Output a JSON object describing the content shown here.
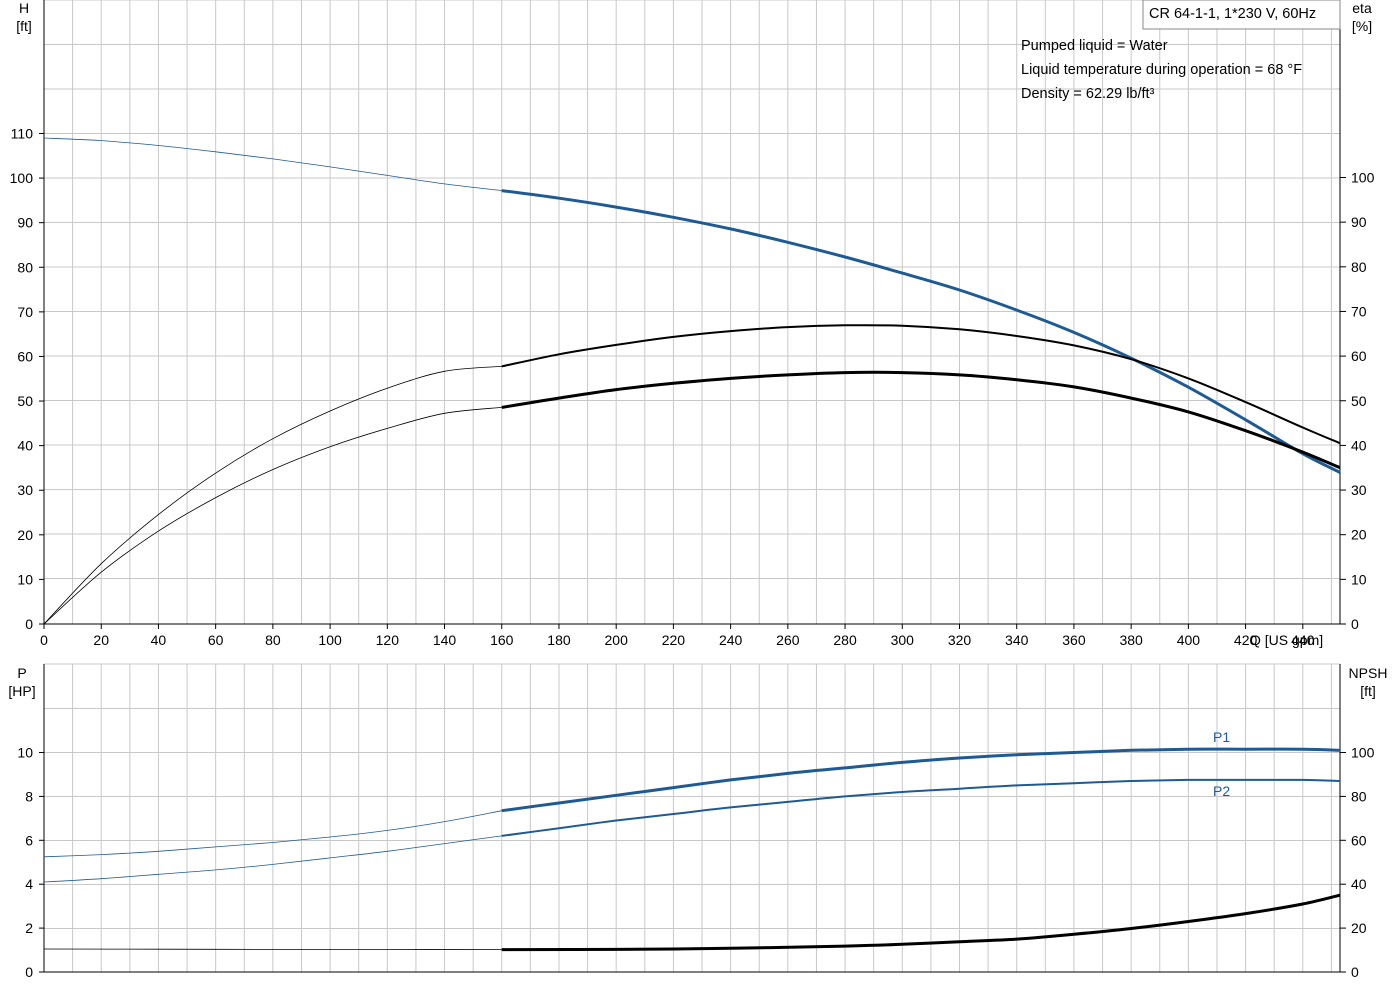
{
  "info": {
    "pump_title": "CR 64-1-1, 1*230 V, 60Hz",
    "lines": [
      "Pumped liquid = Water",
      "Liquid temperature during operation = 68 °F",
      "Density = 62.29 lb/ft³"
    ]
  },
  "colors": {
    "blue": "#1e5a93",
    "black": "#000000",
    "grid": "#c8c8c8"
  },
  "chart_data": [
    {
      "type": "line",
      "name": "performance",
      "x_axis": {
        "label": "Q [US gpm]",
        "min": 0,
        "max": 453,
        "step": 20,
        "ticks": [
          0,
          20,
          40,
          60,
          80,
          100,
          120,
          140,
          160,
          180,
          200,
          220,
          240,
          260,
          280,
          300,
          320,
          340,
          360,
          380,
          400,
          420,
          440
        ]
      },
      "y_left": {
        "label_top": "H",
        "label_unit": "[ft]",
        "min": 0,
        "max": 110,
        "ticks": [
          0,
          10,
          20,
          30,
          40,
          50,
          60,
          70,
          80,
          90,
          100,
          110
        ]
      },
      "y_right": {
        "label_top": "eta",
        "label_unit": "[%]",
        "min": 0,
        "max": 100,
        "ticks": [
          0,
          10,
          20,
          30,
          40,
          50,
          60,
          70,
          80,
          90,
          100
        ]
      },
      "grid": true,
      "operating_range_start": 160,
      "series": [
        {
          "id": "head",
          "axis": "left",
          "color": "blue",
          "x": [
            0,
            20,
            40,
            60,
            80,
            100,
            120,
            140,
            160,
            180,
            200,
            220,
            240,
            260,
            280,
            300,
            320,
            340,
            360,
            380,
            400,
            420,
            440,
            453
          ],
          "y": [
            109,
            108.4,
            107.3,
            105.9,
            104.3,
            102.5,
            100.6,
            98.7,
            97.2,
            95.5,
            93.5,
            91.2,
            88.6,
            85.6,
            82.3,
            78.7,
            74.9,
            70.4,
            65.4,
            59.6,
            53.1,
            45.8,
            38.2,
            34
          ]
        },
        {
          "id": "efficiency_pump",
          "axis": "right",
          "color": "black",
          "x": [
            0,
            20,
            40,
            60,
            80,
            100,
            120,
            140,
            160,
            180,
            200,
            220,
            240,
            260,
            280,
            300,
            320,
            340,
            360,
            380,
            400,
            420,
            440,
            453
          ],
          "y": [
            0,
            13.5,
            24.5,
            33.8,
            41.5,
            47.7,
            52.8,
            56.6,
            57.7,
            60.4,
            62.5,
            64.3,
            65.6,
            66.5,
            66.9,
            66.8,
            66.0,
            64.5,
            62.4,
            59.3,
            55.0,
            49.7,
            44.0,
            40.5
          ]
        },
        {
          "id": "efficiency_total",
          "axis": "right",
          "color": "black",
          "x": [
            0,
            20,
            40,
            60,
            80,
            100,
            120,
            140,
            160,
            180,
            200,
            220,
            240,
            260,
            280,
            300,
            320,
            340,
            360,
            380,
            400,
            420,
            440,
            453
          ],
          "y": [
            0,
            11.6,
            20.8,
            28.3,
            34.6,
            39.7,
            43.8,
            47.2,
            48.5,
            50.6,
            52.5,
            53.9,
            55.0,
            55.8,
            56.3,
            56.3,
            55.8,
            54.7,
            53.1,
            50.6,
            47.5,
            43.3,
            38.5,
            35
          ]
        }
      ]
    },
    {
      "type": "line",
      "name": "power_npsh",
      "x_axis": {
        "min": 0,
        "max": 453,
        "step": 20
      },
      "y_left": {
        "label_top": "P",
        "label_unit": "[HP]",
        "min": 0,
        "max": 10,
        "ticks": [
          0,
          2,
          4,
          6,
          8,
          10
        ]
      },
      "y_right": {
        "label_top": "NPSH",
        "label_unit": "[ft]",
        "min": 0,
        "max": 100,
        "ticks": [
          0,
          20,
          40,
          60,
          80,
          100
        ]
      },
      "grid": true,
      "operating_range_start": 160,
      "series": [
        {
          "id": "p1",
          "name": "P1",
          "axis": "left",
          "color": "blue",
          "x": [
            0,
            20,
            40,
            60,
            80,
            100,
            120,
            140,
            160,
            180,
            200,
            220,
            240,
            260,
            280,
            300,
            320,
            340,
            360,
            380,
            400,
            420,
            440,
            453
          ],
          "y": [
            5.25,
            5.35,
            5.5,
            5.7,
            5.9,
            6.15,
            6.45,
            6.85,
            7.35,
            7.7,
            8.05,
            8.4,
            8.75,
            9.05,
            9.3,
            9.55,
            9.75,
            9.9,
            10.0,
            10.1,
            10.15,
            10.15,
            10.15,
            10.1
          ]
        },
        {
          "id": "p2",
          "name": "P2",
          "axis": "left",
          "color": "blue",
          "x": [
            0,
            20,
            40,
            60,
            80,
            100,
            120,
            140,
            160,
            180,
            200,
            220,
            240,
            260,
            280,
            300,
            320,
            340,
            360,
            380,
            400,
            420,
            440,
            453
          ],
          "y": [
            4.1,
            4.25,
            4.45,
            4.65,
            4.9,
            5.2,
            5.5,
            5.85,
            6.2,
            6.55,
            6.9,
            7.2,
            7.5,
            7.75,
            8.0,
            8.2,
            8.35,
            8.5,
            8.6,
            8.7,
            8.75,
            8.75,
            8.75,
            8.7
          ]
        },
        {
          "id": "npsh",
          "axis": "right",
          "color": "black",
          "x": [
            0,
            40,
            80,
            120,
            160,
            200,
            240,
            280,
            300,
            320,
            340,
            360,
            380,
            400,
            420,
            440,
            453
          ],
          "y": [
            10.5,
            10.4,
            10.3,
            10.3,
            10.2,
            10.3,
            10.8,
            11.8,
            12.6,
            13.8,
            15.0,
            17.2,
            19.8,
            23.0,
            26.6,
            31.0,
            35.0
          ]
        }
      ]
    }
  ]
}
